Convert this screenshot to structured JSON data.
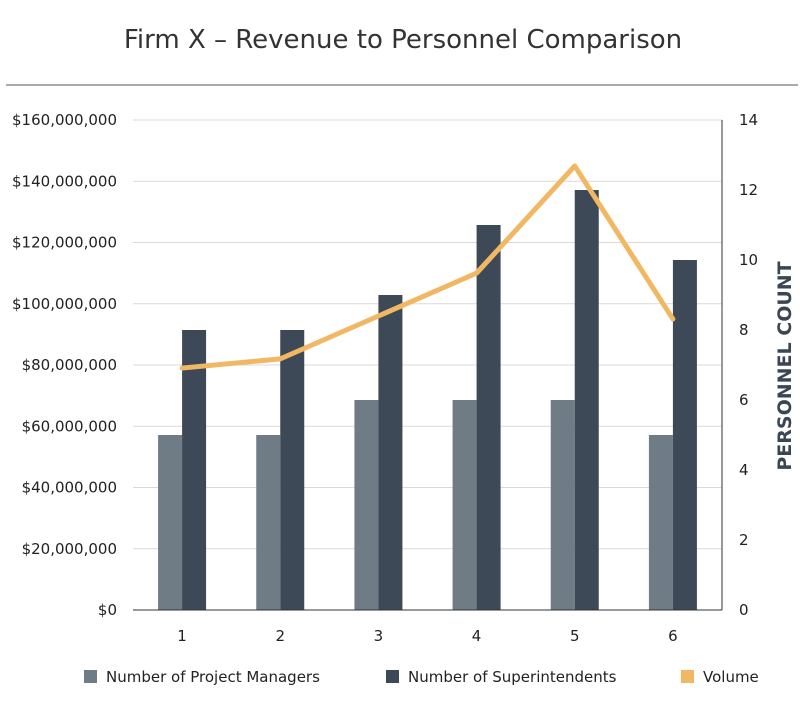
{
  "chart_data": {
    "type": "bar",
    "title": "Firm X – Revenue to Personnel Comparison",
    "xlabel": "",
    "ylabel_left": "",
    "ylabel_right": "PERSONNEL COUNT",
    "categories": [
      "1",
      "2",
      "3",
      "4",
      "5",
      "6"
    ],
    "ylim_left": [
      0,
      160000000
    ],
    "ylim_right": [
      0,
      14
    ],
    "yticks_left": [
      "$0",
      "$20,000,000",
      "$40,000,000",
      "$60,000,000",
      "$80,000,000",
      "$100,000,000",
      "$120,000,000",
      "$140,000,000",
      "$160,000,000"
    ],
    "yticks_right": [
      "0",
      "2",
      "4",
      "6",
      "8",
      "10",
      "12",
      "14"
    ],
    "grid": true,
    "legend_position": "bottom",
    "series": [
      {
        "name": "Number of Project Managers",
        "kind": "bar",
        "axis": "right",
        "color": "#6f7b85",
        "values": [
          5,
          5,
          6,
          6,
          6,
          5
        ]
      },
      {
        "name": "Number of Superintendents",
        "kind": "bar",
        "axis": "right",
        "color": "#3e4957",
        "values": [
          8,
          8,
          9,
          11,
          12,
          10
        ]
      },
      {
        "name": "Volume",
        "kind": "line",
        "axis": "left",
        "color": "#f0b862",
        "values": [
          79000000,
          82000000,
          96000000,
          110000000,
          145000000,
          95000000
        ]
      }
    ]
  }
}
